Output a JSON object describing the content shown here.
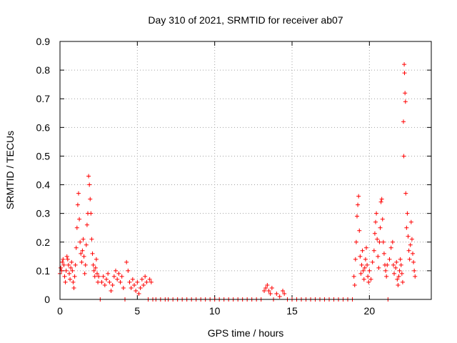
{
  "chart_data": {
    "type": "scatter",
    "title": "Day 310 of 2021, SRMTID for receiver ab07",
    "xlabel": "GPS time / hours",
    "ylabel": "SRMTID / TECUs",
    "xlim": [
      0,
      24
    ],
    "ylim": [
      0,
      0.9
    ],
    "xticks": [
      0,
      5,
      10,
      15,
      20
    ],
    "xtick_labels": [
      "0",
      "5",
      "10",
      "15",
      "20"
    ],
    "yticks": [
      0,
      0.1,
      0.2,
      0.3,
      0.4,
      0.5,
      0.6,
      0.7,
      0.8,
      0.9
    ],
    "ytick_labels": [
      "0",
      "0.1",
      "0.2",
      "0.3",
      "0.4",
      "0.5",
      "0.6",
      "0.7",
      "0.8",
      "0.9"
    ],
    "grid": true,
    "marker": "+",
    "marker_color": "#ff0000",
    "series": [
      {
        "name": "SRMTID",
        "points": [
          [
            0.0,
            0.09
          ],
          [
            0.05,
            0.11
          ],
          [
            0.1,
            0.1
          ],
          [
            0.15,
            0.13
          ],
          [
            0.2,
            0.14
          ],
          [
            0.25,
            0.12
          ],
          [
            0.3,
            0.08
          ],
          [
            0.35,
            0.06
          ],
          [
            0.4,
            0.1
          ],
          [
            0.45,
            0.15
          ],
          [
            0.5,
            0.14
          ],
          [
            0.55,
            0.12
          ],
          [
            0.6,
            0.09
          ],
          [
            0.65,
            0.07
          ],
          [
            0.7,
            0.11
          ],
          [
            0.75,
            0.13
          ],
          [
            0.8,
            0.1
          ],
          [
            0.85,
            0.06
          ],
          [
            0.9,
            0.04
          ],
          [
            0.95,
            0.08
          ],
          [
            1.0,
            0.12
          ],
          [
            1.05,
            0.18
          ],
          [
            1.1,
            0.25
          ],
          [
            1.15,
            0.33
          ],
          [
            1.2,
            0.37
          ],
          [
            1.25,
            0.28
          ],
          [
            1.3,
            0.2
          ],
          [
            1.35,
            0.16
          ],
          [
            1.4,
            0.13
          ],
          [
            1.45,
            0.17
          ],
          [
            1.5,
            0.21
          ],
          [
            1.55,
            0.15
          ],
          [
            1.6,
            0.09
          ],
          [
            1.65,
            0.12
          ],
          [
            1.7,
            0.19
          ],
          [
            1.75,
            0.26
          ],
          [
            1.8,
            0.3
          ],
          [
            1.85,
            0.43
          ],
          [
            1.9,
            0.4
          ],
          [
            1.95,
            0.35
          ],
          [
            2.0,
            0.3
          ],
          [
            2.05,
            0.21
          ],
          [
            2.1,
            0.16
          ],
          [
            2.15,
            0.12
          ],
          [
            2.2,
            0.1
          ],
          [
            2.25,
            0.08
          ],
          [
            2.3,
            0.11
          ],
          [
            2.35,
            0.14
          ],
          [
            2.4,
            0.09
          ],
          [
            2.45,
            0.06
          ],
          [
            2.5,
            0.08
          ],
          [
            2.6,
            0.0
          ],
          [
            2.7,
            0.06
          ],
          [
            2.8,
            0.08
          ],
          [
            2.9,
            0.05
          ],
          [
            3.0,
            0.07
          ],
          [
            3.1,
            0.09
          ],
          [
            3.2,
            0.06
          ],
          [
            3.3,
            0.03
          ],
          [
            3.4,
            0.05
          ],
          [
            3.5,
            0.08
          ],
          [
            3.6,
            0.1
          ],
          [
            3.7,
            0.07
          ],
          [
            3.8,
            0.09
          ],
          [
            3.9,
            0.06
          ],
          [
            4.0,
            0.08
          ],
          [
            4.1,
            0.04
          ],
          [
            4.2,
            0.0
          ],
          [
            4.3,
            0.13
          ],
          [
            4.4,
            0.1
          ],
          [
            4.5,
            0.06
          ],
          [
            4.6,
            0.04
          ],
          [
            4.7,
            0.07
          ],
          [
            4.8,
            0.05
          ],
          [
            4.9,
            0.03
          ],
          [
            5.0,
            0.06
          ],
          [
            5.1,
            0.02
          ],
          [
            5.2,
            0.04
          ],
          [
            5.3,
            0.07
          ],
          [
            5.4,
            0.05
          ],
          [
            5.5,
            0.08
          ],
          [
            5.6,
            0.06
          ],
          [
            5.7,
            0.0
          ],
          [
            5.8,
            0.07
          ],
          [
            5.9,
            0.06
          ],
          [
            6.0,
            0.0
          ],
          [
            6.2,
            0.0
          ],
          [
            6.5,
            0.0
          ],
          [
            6.8,
            0.0
          ],
          [
            7.0,
            0.0
          ],
          [
            7.3,
            0.0
          ],
          [
            7.6,
            0.0
          ],
          [
            7.9,
            0.0
          ],
          [
            8.2,
            0.0
          ],
          [
            8.5,
            0.0
          ],
          [
            8.8,
            0.0
          ],
          [
            9.1,
            0.0
          ],
          [
            9.4,
            0.0
          ],
          [
            9.7,
            0.0
          ],
          [
            10.0,
            0.0
          ],
          [
            10.3,
            0.0
          ],
          [
            10.6,
            0.0
          ],
          [
            10.9,
            0.0
          ],
          [
            11.2,
            0.0
          ],
          [
            11.5,
            0.0
          ],
          [
            11.8,
            0.0
          ],
          [
            12.1,
            0.0
          ],
          [
            12.4,
            0.0
          ],
          [
            12.7,
            0.0
          ],
          [
            13.0,
            0.0
          ],
          [
            13.2,
            0.03
          ],
          [
            13.3,
            0.04
          ],
          [
            13.4,
            0.05
          ],
          [
            13.5,
            0.03
          ],
          [
            13.6,
            0.02
          ],
          [
            13.7,
            0.04
          ],
          [
            13.8,
            0.0
          ],
          [
            14.0,
            0.02
          ],
          [
            14.2,
            0.01
          ],
          [
            14.4,
            0.03
          ],
          [
            14.5,
            0.02
          ],
          [
            14.7,
            0.0
          ],
          [
            15.0,
            0.0
          ],
          [
            15.3,
            0.0
          ],
          [
            15.6,
            0.0
          ],
          [
            15.9,
            0.0
          ],
          [
            16.2,
            0.0
          ],
          [
            16.5,
            0.0
          ],
          [
            16.8,
            0.0
          ],
          [
            17.1,
            0.0
          ],
          [
            17.4,
            0.0
          ],
          [
            17.7,
            0.0
          ],
          [
            18.0,
            0.0
          ],
          [
            18.3,
            0.0
          ],
          [
            18.6,
            0.0
          ],
          [
            18.9,
            0.0
          ],
          [
            19.0,
            0.08
          ],
          [
            19.05,
            0.05
          ],
          [
            19.1,
            0.14
          ],
          [
            19.15,
            0.2
          ],
          [
            19.2,
            0.29
          ],
          [
            19.25,
            0.33
          ],
          [
            19.3,
            0.36
          ],
          [
            19.35,
            0.24
          ],
          [
            19.4,
            0.15
          ],
          [
            19.45,
            0.09
          ],
          [
            19.5,
            0.12
          ],
          [
            19.55,
            0.17
          ],
          [
            19.6,
            0.1
          ],
          [
            19.65,
            0.07
          ],
          [
            19.7,
            0.11
          ],
          [
            19.75,
            0.14
          ],
          [
            19.8,
            0.18
          ],
          [
            19.85,
            0.12
          ],
          [
            19.9,
            0.08
          ],
          [
            19.95,
            0.06
          ],
          [
            20.0,
            0.1
          ],
          [
            20.1,
            0.07
          ],
          [
            20.2,
            0.13
          ],
          [
            20.3,
            0.17
          ],
          [
            20.35,
            0.23
          ],
          [
            20.4,
            0.27
          ],
          [
            20.45,
            0.3
          ],
          [
            20.5,
            0.21
          ],
          [
            20.55,
            0.15
          ],
          [
            20.6,
            0.11
          ],
          [
            20.65,
            0.2
          ],
          [
            20.7,
            0.25
          ],
          [
            20.75,
            0.34
          ],
          [
            20.8,
            0.35
          ],
          [
            20.85,
            0.28
          ],
          [
            20.9,
            0.2
          ],
          [
            20.95,
            0.16
          ],
          [
            21.0,
            0.12
          ],
          [
            21.05,
            0.1
          ],
          [
            21.1,
            0.08
          ],
          [
            21.15,
            0.12
          ],
          [
            21.2,
            0.0
          ],
          [
            21.3,
            0.14
          ],
          [
            21.4,
            0.18
          ],
          [
            21.5,
            0.2
          ],
          [
            21.55,
            0.12
          ],
          [
            21.6,
            0.09
          ],
          [
            21.7,
            0.11
          ],
          [
            21.75,
            0.13
          ],
          [
            21.8,
            0.07
          ],
          [
            21.85,
            0.05
          ],
          [
            21.9,
            0.08
          ],
          [
            21.95,
            0.1
          ],
          [
            22.0,
            0.14
          ],
          [
            22.05,
            0.12
          ],
          [
            22.1,
            0.09
          ],
          [
            22.15,
            0.06
          ],
          [
            22.2,
            0.62
          ],
          [
            22.22,
            0.5
          ],
          [
            22.25,
            0.82
          ],
          [
            22.27,
            0.79
          ],
          [
            22.3,
            0.72
          ],
          [
            22.33,
            0.69
          ],
          [
            22.35,
            0.37
          ],
          [
            22.4,
            0.25
          ],
          [
            22.45,
            0.3
          ],
          [
            22.5,
            0.22
          ],
          [
            22.55,
            0.17
          ],
          [
            22.6,
            0.14
          ],
          [
            22.65,
            0.19
          ],
          [
            22.7,
            0.27
          ],
          [
            22.75,
            0.21
          ],
          [
            22.8,
            0.16
          ],
          [
            22.85,
            0.13
          ],
          [
            22.9,
            0.1
          ],
          [
            22.95,
            0.08
          ]
        ]
      }
    ]
  }
}
